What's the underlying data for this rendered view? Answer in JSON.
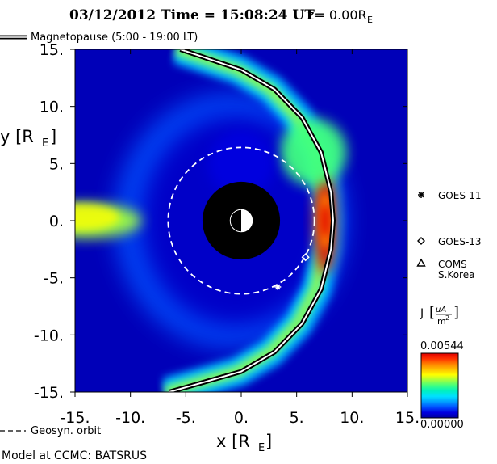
{
  "title": {
    "date_time": "03/12/2012 Time = 15:08:24 UT",
    "z_label": "z= 0.00R",
    "z_sub": "E"
  },
  "legend": {
    "magnetopause_label": "Magnetopause (5:00 - 19:00 LT)",
    "geosyn_label": "Geosyn. orbit",
    "model_label": "Model at CCMC: BATSRUS"
  },
  "satellites": [
    {
      "name": "GOES-11",
      "marker": "asterisk",
      "x": 3.3,
      "y": -5.8
    },
    {
      "name": "GOES-13",
      "marker": "diamond",
      "x": 5.8,
      "y": -3.2
    },
    {
      "name": "COMS",
      "name2": "S.Korea",
      "marker": "triangle"
    }
  ],
  "colorbar": {
    "label": "J",
    "unit_num": "μA",
    "unit_den": "m",
    "unit_den_exp": "2",
    "max_label": "0.00544",
    "min_label": "0.00000",
    "min": 0.0,
    "max": 0.00544,
    "colors": [
      "#0000a0",
      "#0000e0",
      "#0050ff",
      "#00a0ff",
      "#00e0ff",
      "#00f0c0",
      "#40ff80",
      "#a0ff40",
      "#ffff00",
      "#ffc000",
      "#ff8000",
      "#ff3000",
      "#e00000"
    ]
  },
  "chart_data": {
    "type": "heatmap",
    "xlabel": "x [R",
    "xlabel_sub": "E",
    "ylabel": "y [R",
    "ylabel_sub": "E",
    "xlim": [
      -15,
      15
    ],
    "ylim": [
      -15,
      15
    ],
    "x_ticks": [
      "-15.",
      "-10.",
      "-5.",
      "0.",
      "5.",
      "10.",
      "15."
    ],
    "y_ticks": [
      "15.",
      "10.",
      "5.",
      "0.",
      "-5.",
      "-10.",
      "-15."
    ],
    "x_tick_values": [
      -15,
      -10,
      -5,
      0,
      5,
      10,
      15
    ],
    "y_tick_values": [
      15,
      10,
      5,
      0,
      -5,
      -10,
      -15
    ],
    "earth_exclusion_radius": 3.5,
    "geosync_radius": 6.6,
    "magnetopause_standoff": 8.3,
    "magnetopause_curve": [
      {
        "x": -5.5,
        "y": 15
      },
      {
        "x": 0,
        "y": 13.2
      },
      {
        "x": 3,
        "y": 11.5
      },
      {
        "x": 5.5,
        "y": 9
      },
      {
        "x": 7.2,
        "y": 6
      },
      {
        "x": 8.1,
        "y": 2.5
      },
      {
        "x": 8.3,
        "y": 0
      },
      {
        "x": 8.1,
        "y": -2.5
      },
      {
        "x": 7.2,
        "y": -6
      },
      {
        "x": 5.5,
        "y": -9
      },
      {
        "x": 3,
        "y": -11.5
      },
      {
        "x": 0,
        "y": -13.2
      },
      {
        "x": -6.5,
        "y": -15
      }
    ],
    "current_regions": [
      {
        "name": "magnetopause current",
        "x": 8.3,
        "y": 0,
        "value": 0.0054
      },
      {
        "name": "dayside outer",
        "x": 6.5,
        "y": 6,
        "value": 0.0025
      },
      {
        "name": "tail sheet",
        "x": -14,
        "y": 0,
        "value": 0.0033
      },
      {
        "name": "inner background",
        "x": 0,
        "y": 5,
        "value": 0.0006
      }
    ]
  }
}
